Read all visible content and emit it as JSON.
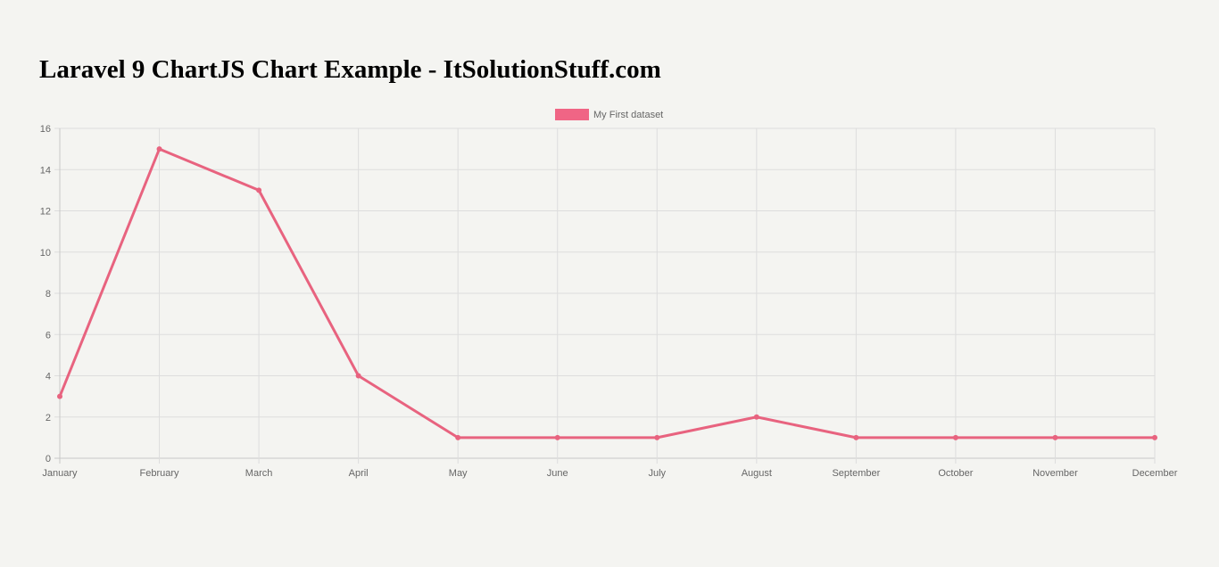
{
  "page": {
    "title": "Laravel 9 ChartJS Chart Example - ItSolutionStuff.com"
  },
  "colors": {
    "background": "#f4f4f1",
    "series": "#e8637f",
    "legend_swatch": "#f06585",
    "grid": "#dddddd",
    "tick_text": "#666666"
  },
  "chart_data": {
    "type": "line",
    "categories": [
      "January",
      "February",
      "March",
      "April",
      "May",
      "June",
      "July",
      "August",
      "September",
      "October",
      "November",
      "December"
    ],
    "series": [
      {
        "name": "My First dataset",
        "values": [
          3,
          15,
          13,
          4,
          1,
          1,
          1,
          2,
          1,
          1,
          1,
          1
        ]
      }
    ],
    "y_ticks": [
      "0",
      "2",
      "4",
      "6",
      "8",
      "10",
      "12",
      "14",
      "16"
    ],
    "ylim": [
      0,
      16
    ],
    "grid": true,
    "legend_position": "top-center"
  }
}
